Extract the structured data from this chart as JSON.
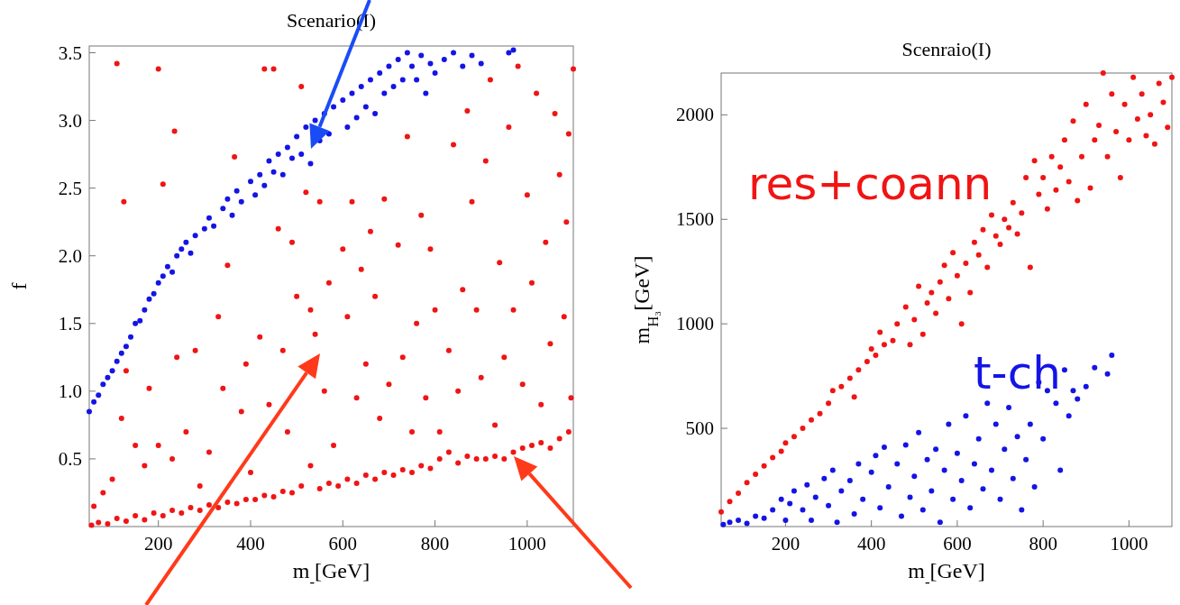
{
  "chart_data": [
    {
      "type": "scatter",
      "title": "Scenario(I)",
      "xlabel": "m$_{-}$[GeV]",
      "ylabel": "f",
      "xlim": [
        50,
        1100
      ],
      "ylim": [
        0,
        3.55
      ],
      "xticks": [
        200,
        400,
        600,
        800,
        1000
      ],
      "yticks": [
        0.5,
        {
          "value": 1,
          "label": "1.0"
        },
        1.5,
        {
          "value": 2,
          "label": "2.0"
        },
        2.5,
        {
          "value": 3,
          "label": "3.0"
        },
        3.5
      ],
      "marker": "circle",
      "grid": false,
      "series": [
        {
          "color": "#1414e6",
          "x": [
            50,
            60,
            70,
            80,
            90,
            100,
            110,
            120,
            130,
            140,
            150,
            160,
            170,
            180,
            190,
            200,
            210,
            220,
            230,
            240,
            250,
            260,
            270,
            280,
            300,
            310,
            320,
            340,
            350,
            360,
            370,
            380,
            400,
            410,
            420,
            430,
            440,
            450,
            460,
            470,
            480,
            490,
            500,
            510,
            520,
            530,
            540,
            550,
            560,
            570,
            580,
            600,
            610,
            620,
            630,
            640,
            650,
            660,
            670,
            680,
            690,
            700,
            710,
            720,
            730,
            740,
            750,
            760,
            770,
            780,
            790,
            800,
            820,
            840,
            860,
            880,
            900,
            960,
            970
          ],
          "values": [
            0.85,
            0.92,
            0.97,
            1.05,
            1.1,
            1.15,
            1.22,
            1.28,
            1.33,
            1.4,
            1.5,
            1.52,
            1.6,
            1.68,
            1.72,
            1.8,
            1.85,
            1.92,
            1.88,
            2.0,
            2.05,
            2.1,
            2.02,
            2.15,
            2.2,
            2.28,
            2.22,
            2.35,
            2.42,
            2.3,
            2.48,
            2.4,
            2.55,
            2.45,
            2.6,
            2.52,
            2.7,
            2.62,
            2.75,
            2.6,
            2.8,
            2.72,
            2.88,
            2.75,
            2.95,
            2.68,
            3.0,
            2.85,
            3.05,
            2.9,
            3.1,
            3.15,
            2.95,
            3.2,
            3.02,
            3.25,
            3.1,
            3.3,
            3.05,
            3.35,
            3.2,
            3.4,
            3.25,
            3.45,
            3.3,
            3.5,
            3.4,
            3.3,
            3.48,
            3.2,
            3.42,
            3.35,
            3.45,
            3.5,
            3.4,
            3.48,
            3.42,
            3.5,
            3.52
          ]
        },
        {
          "color": "#f01414",
          "x": [
            55,
            70,
            90,
            110,
            130,
            150,
            170,
            190,
            210,
            230,
            250,
            270,
            290,
            310,
            330,
            350,
            370,
            390,
            410,
            430,
            450,
            470,
            490,
            510,
            530,
            550,
            570,
            590,
            610,
            630,
            650,
            670,
            690,
            710,
            730,
            750,
            770,
            790,
            810,
            830,
            850,
            870,
            890,
            910,
            930,
            950,
            970,
            990,
            1010,
            1030,
            1050,
            1070,
            1090,
            60,
            80,
            100,
            120,
            130,
            110,
            125,
            180,
            200,
            210,
            235,
            240,
            150,
            170,
            200,
            230,
            260,
            280,
            290,
            310,
            330,
            340,
            350,
            365,
            380,
            390,
            400,
            420,
            430,
            440,
            450,
            460,
            470,
            480,
            490,
            500,
            510,
            520,
            530,
            540,
            550,
            560,
            570,
            580,
            600,
            610,
            620,
            630,
            640,
            650,
            660,
            670,
            680,
            690,
            700,
            720,
            730,
            740,
            750,
            760,
            770,
            780,
            790,
            800,
            810,
            830,
            840,
            850,
            860,
            870,
            880,
            890,
            900,
            910,
            920,
            930,
            940,
            950,
            960,
            970,
            980,
            990,
            1000,
            1010,
            1020,
            1030,
            1040,
            1050,
            1060,
            1070,
            1080,
            1090,
            1100,
            1095,
            1085
          ],
          "values": [
            0.01,
            0.03,
            0.02,
            0.06,
            0.04,
            0.08,
            0.05,
            0.1,
            0.08,
            0.12,
            0.1,
            0.14,
            0.12,
            0.16,
            0.14,
            0.18,
            0.17,
            0.2,
            0.2,
            0.23,
            0.22,
            0.26,
            0.25,
            0.3,
            0.45,
            0.28,
            0.32,
            0.3,
            0.35,
            0.32,
            0.38,
            0.35,
            0.4,
            0.38,
            0.42,
            0.4,
            0.45,
            0.43,
            0.5,
            0.55,
            0.47,
            0.52,
            0.5,
            0.5,
            0.52,
            0.5,
            0.55,
            0.58,
            0.6,
            0.62,
            0.58,
            0.65,
            0.7,
            0.15,
            0.25,
            0.35,
            0.8,
            1.15,
            3.42,
            2.4,
            1.02,
            3.38,
            2.53,
            2.92,
            1.25,
            0.6,
            0.45,
            0.6,
            0.5,
            0.7,
            1.3,
            0.3,
            0.55,
            1.55,
            1.02,
            1.93,
            2.73,
            0.85,
            1.2,
            0.4,
            1.4,
            3.38,
            0.9,
            3.38,
            2.2,
            1.3,
            0.7,
            2.1,
            1.7,
            3.25,
            2.47,
            1.6,
            1.42,
            2.4,
            1.0,
            1.8,
            0.6,
            2.05,
            1.55,
            2.4,
            0.95,
            1.9,
            1.2,
            2.18,
            1.7,
            0.8,
            2.42,
            1.05,
            2.08,
            1.25,
            2.88,
            0.7,
            1.5,
            2.3,
            0.95,
            2.05,
            1.6,
            0.7,
            1.3,
            2.82,
            1.0,
            1.75,
            3.07,
            2.4,
            1.6,
            1.1,
            2.7,
            3.3,
            0.75,
            1.95,
            1.25,
            2.95,
            1.6,
            3.4,
            1.05,
            2.45,
            1.8,
            3.2,
            0.9,
            2.1,
            1.35,
            3.05,
            2.6,
            1.55,
            2.9,
            3.38,
            0.95,
            2.25
          ]
        }
      ]
    },
    {
      "type": "scatter",
      "title": "Scenraio(I)",
      "xlabel": "m$_{-}$[GeV]",
      "ylabel": "m$_{H₃}$[GeV]",
      "xlim": [
        50,
        1100
      ],
      "ylim": [
        30,
        2200
      ],
      "xticks": [
        200,
        400,
        600,
        800,
        1000
      ],
      "yticks": [
        500,
        1000,
        1500,
        2000
      ],
      "marker": "circle",
      "grid": false,
      "series": [
        {
          "name": "res+coann",
          "color": "#f01414",
          "x": [
            50,
            70,
            90,
            110,
            130,
            150,
            170,
            190,
            200,
            220,
            240,
            260,
            280,
            300,
            310,
            330,
            350,
            360,
            370,
            390,
            400,
            410,
            420,
            430,
            450,
            460,
            480,
            490,
            500,
            510,
            520,
            530,
            540,
            550,
            560,
            570,
            580,
            590,
            600,
            610,
            620,
            630,
            640,
            650,
            660,
            670,
            680,
            690,
            700,
            710,
            720,
            730,
            740,
            750,
            760,
            770,
            780,
            790,
            800,
            810,
            820,
            830,
            840,
            850,
            860,
            870,
            880,
            890,
            900,
            910,
            920,
            930,
            940,
            950,
            960,
            970,
            980,
            990,
            1000,
            1010,
            1020,
            1030,
            1040,
            1050,
            1060,
            1070,
            1080,
            1090,
            1100
          ],
          "values": [
            100,
            150,
            190,
            240,
            280,
            320,
            360,
            390,
            430,
            460,
            500,
            540,
            570,
            620,
            680,
            700,
            740,
            650,
            780,
            820,
            880,
            850,
            960,
            900,
            920,
            1000,
            1080,
            900,
            1020,
            1180,
            950,
            1100,
            1150,
            1050,
            1200,
            1280,
            1120,
            1340,
            1230,
            1000,
            1290,
            1150,
            1390,
            1330,
            1450,
            1270,
            1520,
            1420,
            1380,
            1500,
            1460,
            1580,
            1430,
            1530,
            1700,
            1270,
            1780,
            1620,
            1700,
            1550,
            1800,
            1640,
            1750,
            1880,
            1680,
            1970,
            1590,
            1800,
            2050,
            1650,
            1880,
            1950,
            2200,
            1800,
            2100,
            1920,
            1700,
            2050,
            1880,
            2180,
            1980,
            2100,
            1900,
            2000,
            1860,
            2150,
            2060,
            1940,
            2180
          ]
        },
        {
          "name": "t-ch",
          "color": "#1414e6",
          "x": [
            55,
            70,
            90,
            110,
            130,
            150,
            170,
            190,
            200,
            210,
            220,
            240,
            250,
            260,
            270,
            290,
            300,
            310,
            320,
            330,
            350,
            360,
            370,
            380,
            400,
            410,
            420,
            430,
            440,
            460,
            470,
            480,
            490,
            500,
            510,
            520,
            530,
            540,
            550,
            560,
            570,
            580,
            590,
            600,
            610,
            620,
            630,
            640,
            650,
            660,
            670,
            680,
            690,
            700,
            710,
            720,
            730,
            740,
            750,
            760,
            770,
            780,
            790,
            800,
            810,
            830,
            840,
            850,
            860,
            870,
            880,
            900,
            920,
            950,
            960
          ],
          "values": [
            40,
            50,
            60,
            45,
            80,
            70,
            110,
            160,
            60,
            140,
            200,
            110,
            230,
            60,
            170,
            260,
            130,
            300,
            50,
            200,
            250,
            90,
            330,
            160,
            290,
            370,
            120,
            410,
            220,
            330,
            80,
            420,
            170,
            270,
            480,
            110,
            350,
            200,
            400,
            50,
            300,
            520,
            160,
            380,
            250,
            560,
            120,
            330,
            450,
            210,
            620,
            300,
            520,
            160,
            400,
            600,
            260,
            460,
            110,
            350,
            520,
            220,
            720,
            450,
            680,
            620,
            300,
            780,
            560,
            680,
            640,
            700,
            790,
            760,
            850
          ]
        }
      ]
    }
  ]
}
